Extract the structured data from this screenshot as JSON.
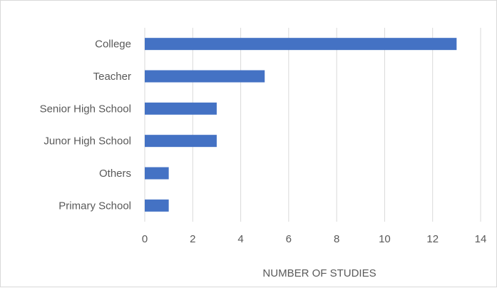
{
  "chart_data": {
    "type": "bar",
    "orientation": "horizontal",
    "categories": [
      "College",
      "Teacher",
      "Senior High School",
      "Junor High School",
      "Others",
      "Primary School"
    ],
    "values": [
      13,
      5,
      3,
      3,
      1,
      1
    ],
    "xlabel": "NUMBER OF STUDIES",
    "ylabel": "",
    "xlim": [
      0,
      14
    ],
    "xticks": [
      "0",
      "2",
      "4",
      "6",
      "8",
      "10",
      "12",
      "14"
    ],
    "grid": "vertical",
    "colors": {
      "bar": "#4472c4",
      "grid": "#d9d9d9",
      "text": "#595959"
    }
  }
}
